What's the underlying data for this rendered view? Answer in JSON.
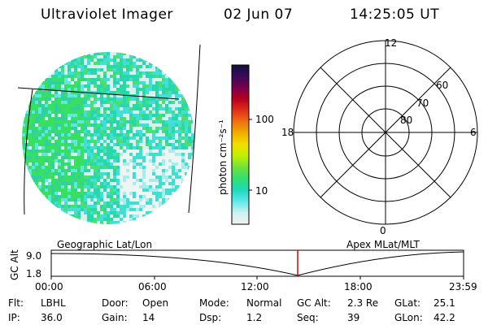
{
  "header": {
    "instrument": "Ultraviolet Imager",
    "date": "02 Jun 07",
    "time": "14:25:05 UT"
  },
  "colorbar": {
    "unit_label": "photon cm⁻²s⁻¹",
    "ticks": [
      "100",
      "10"
    ],
    "stops": [
      "#101040",
      "#3a0a5a",
      "#7a004a",
      "#b8001e",
      "#e0301a",
      "#f07010",
      "#f0b000",
      "#f0e000",
      "#c0f000",
      "#70e040",
      "#30e070",
      "#20d8c0",
      "#60e8e8",
      "#d0f0f0",
      "#f0f0f0"
    ]
  },
  "polar_plot": {
    "mlt_labels": [
      "12",
      "18",
      "6",
      "0"
    ],
    "lat_labels": [
      "60",
      "70",
      "80"
    ]
  },
  "timeline": {
    "ylabel": "GC Alt",
    "yticks": [
      "9.0",
      "1.8"
    ],
    "left_label": "Geographic Lat/Lon",
    "right_label": "Apex MLat/MLT",
    "xticks": [
      "00:00",
      "06:00",
      "12:00",
      "18:00",
      "23:59"
    ],
    "marker_color": "#e00000"
  },
  "info_rows": [
    [
      {
        "k": "Flt:",
        "v": "LBHL"
      },
      {
        "k": "Door:",
        "v": "Open"
      },
      {
        "k": "Mode:",
        "v": "Normal"
      },
      {
        "k": "GC Alt:",
        "v": "2.3 Re"
      },
      {
        "k": "GLat:",
        "v": "25.1"
      }
    ],
    [
      {
        "k": "IP:",
        "v": "36.0"
      },
      {
        "k": "Gain:",
        "v": "14"
      },
      {
        "k": "Dsp:",
        "v": "1.2"
      },
      {
        "k": "Seq:",
        "v": "39"
      },
      {
        "k": "GLon:",
        "v": "42.2"
      }
    ]
  ]
}
